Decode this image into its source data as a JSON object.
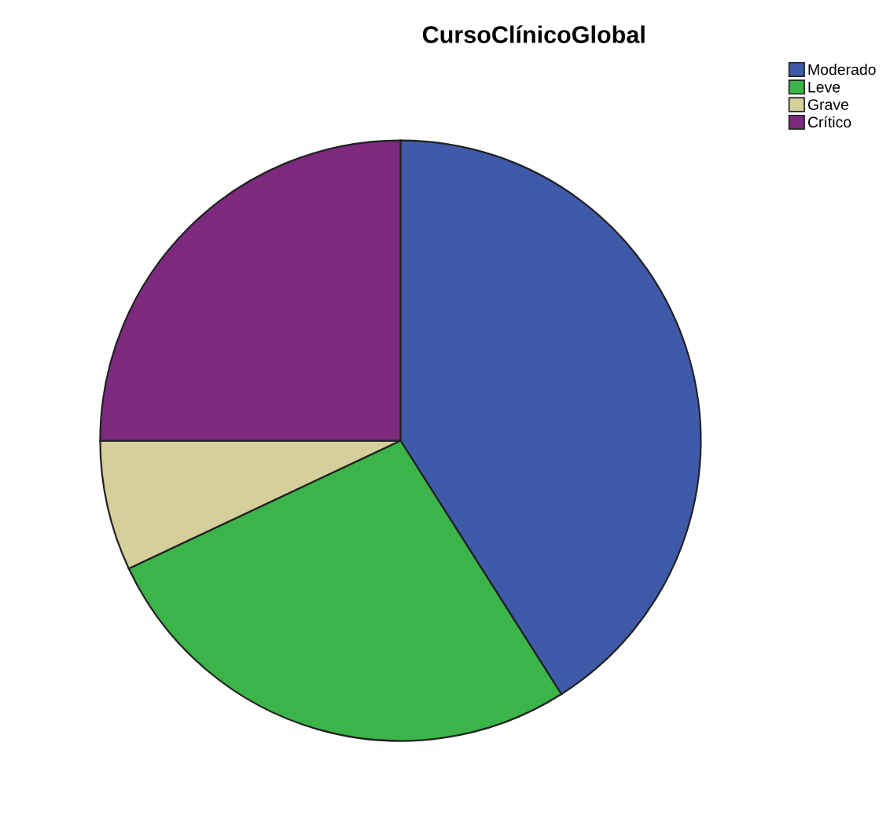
{
  "chart_data": {
    "type": "pie",
    "title": "CursoClínicoGlobal",
    "categories": [
      "Moderado",
      "Leve",
      "Grave",
      "Crítico"
    ],
    "values": [
      41,
      27,
      7,
      25
    ],
    "colors": [
      "#3f5aa9",
      "#3bb44a",
      "#d5cf9c",
      "#7d2a7e"
    ],
    "legend": "top right"
  }
}
